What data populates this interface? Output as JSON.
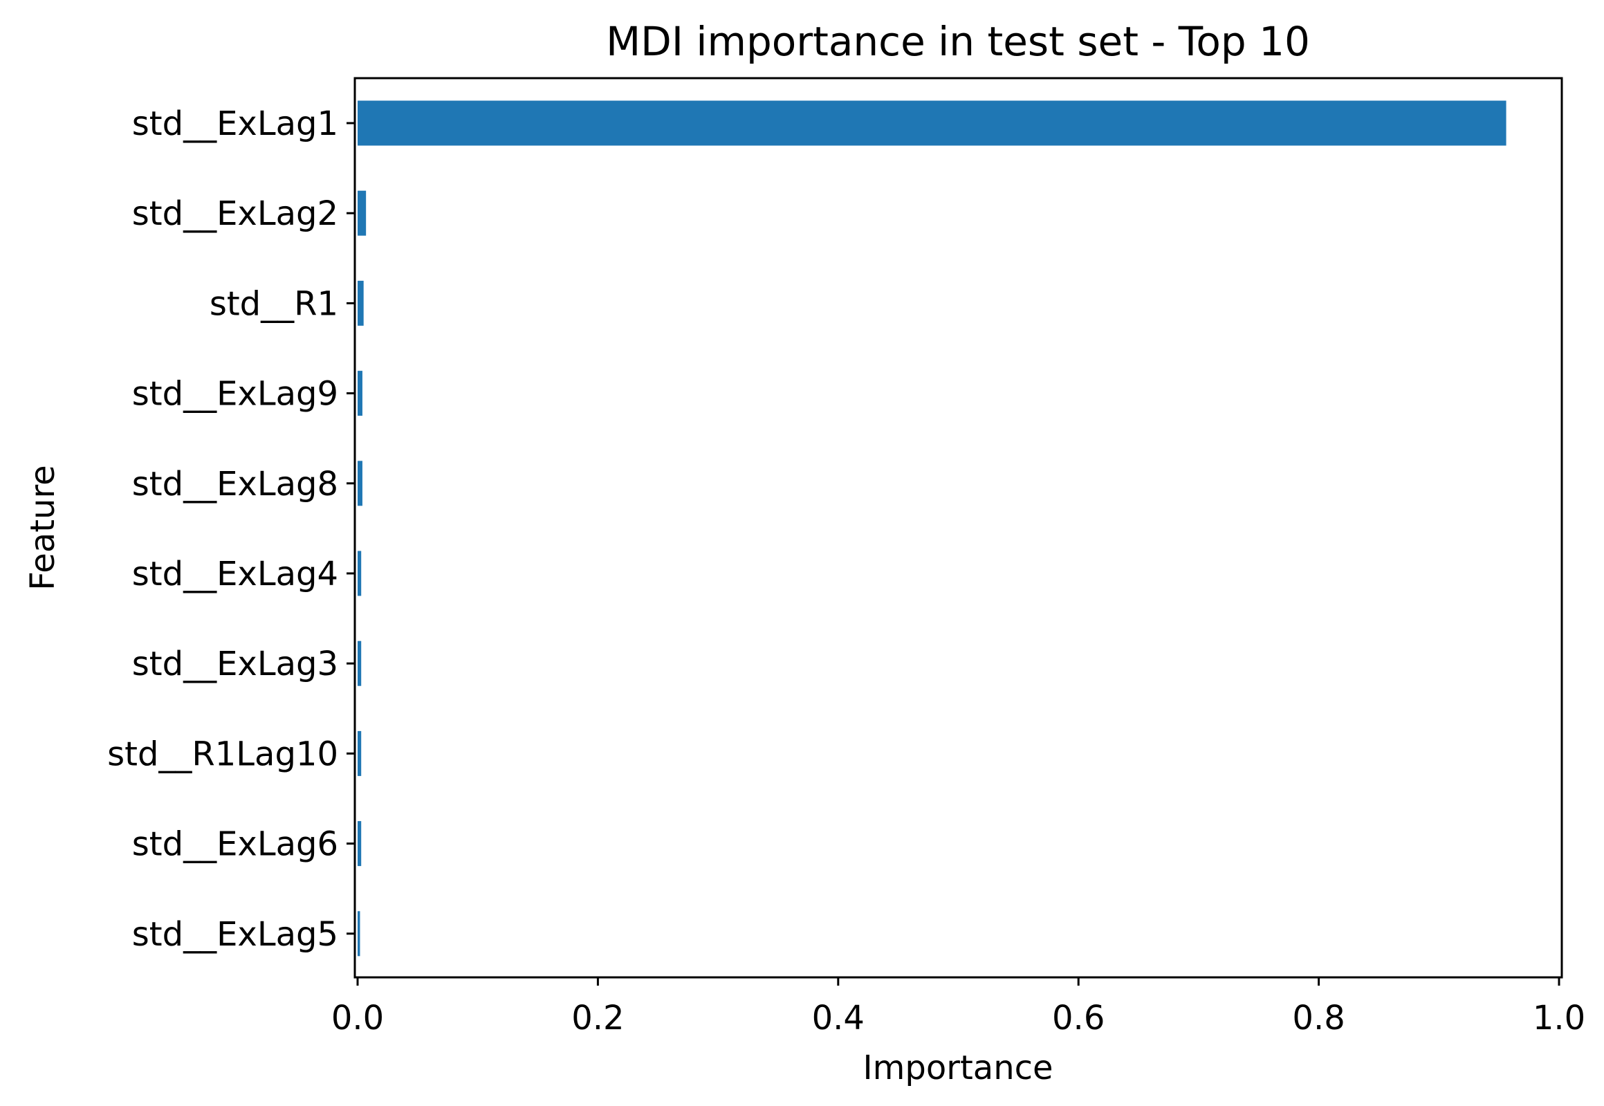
{
  "chart_data": {
    "type": "bar",
    "orientation": "horizontal",
    "title": "MDI importance in test set - Top 10",
    "xlabel": "Importance",
    "ylabel": "Feature",
    "xlim": [
      0.0,
      1.0
    ],
    "xticks": [
      "0.0",
      "0.2",
      "0.4",
      "0.6",
      "0.8",
      "1.0"
    ],
    "grid": false,
    "categories": [
      "std__ExLag1",
      "std__ExLag2",
      "std__R1",
      "std__ExLag9",
      "std__ExLag8",
      "std__ExLag4",
      "std__ExLag3",
      "std__R1Lag10",
      "std__ExLag6",
      "std__ExLag5"
    ],
    "values": [
      0.956,
      0.007,
      0.005,
      0.004,
      0.004,
      0.003,
      0.003,
      0.003,
      0.003,
      0.002
    ],
    "bar_color": "#1f77b4"
  }
}
